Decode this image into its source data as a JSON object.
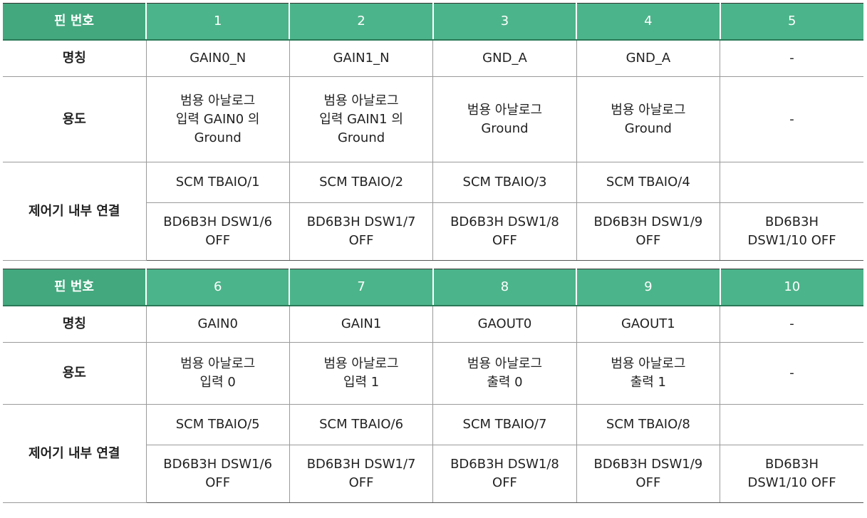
{
  "header_label": "핀 번호",
  "row_labels": {
    "name": "명칭",
    "use": "용도",
    "connection": "제어기 내부 연결"
  },
  "tables": [
    {
      "pins": [
        "1",
        "2",
        "3",
        "4",
        "5"
      ],
      "names": [
        "GAIN0_N",
        "GAIN1_N",
        "GND_A",
        "GND_A",
        "-"
      ],
      "uses": [
        [
          "범용 아날로그",
          "입력 GAIN0 의",
          "Ground"
        ],
        [
          "범용 아날로그",
          "입력 GAIN1 의",
          "Ground"
        ],
        [
          "범용 아날로그",
          "Ground"
        ],
        [
          "범용 아날로그",
          "Ground"
        ],
        [
          "-"
        ]
      ],
      "scm": [
        "SCM TBAIO/1",
        "SCM TBAIO/2",
        "SCM TBAIO/3",
        "SCM TBAIO/4",
        ""
      ],
      "bd": [
        [
          "BD6B3H DSW1/6",
          "OFF"
        ],
        [
          "BD6B3H DSW1/7",
          "OFF"
        ],
        [
          "BD6B3H DSW1/8",
          "OFF"
        ],
        [
          "BD6B3H DSW1/9",
          "OFF"
        ],
        [
          "BD6B3H",
          "DSW1/10 OFF"
        ]
      ]
    },
    {
      "pins": [
        "6",
        "7",
        "8",
        "9",
        "10"
      ],
      "names": [
        "GAIN0",
        "GAIN1",
        "GAOUT0",
        "GAOUT1",
        "-"
      ],
      "uses": [
        [
          "범용 아날로그",
          "입력 0"
        ],
        [
          "범용 아날로그",
          "입력 1"
        ],
        [
          "범용 아날로그",
          "출력 0"
        ],
        [
          "범용 아날로그",
          "출력 1"
        ],
        [
          "-"
        ]
      ],
      "scm": [
        "SCM TBAIO/5",
        "SCM TBAIO/6",
        "SCM TBAIO/7",
        "SCM TBAIO/8",
        ""
      ],
      "bd": [
        [
          "BD6B3H DSW1/6",
          "OFF"
        ],
        [
          "BD6B3H DSW1/7",
          "OFF"
        ],
        [
          "BD6B3H DSW1/8",
          "OFF"
        ],
        [
          "BD6B3H DSW1/9",
          "OFF"
        ],
        [
          "BD6B3H",
          "DSW1/10 OFF"
        ]
      ]
    }
  ],
  "colors": {
    "header_bg": "#4cb48a",
    "header_label_bg": "#43a87e",
    "header_text": "#ffffff",
    "grid": "#9a9a9a"
  }
}
